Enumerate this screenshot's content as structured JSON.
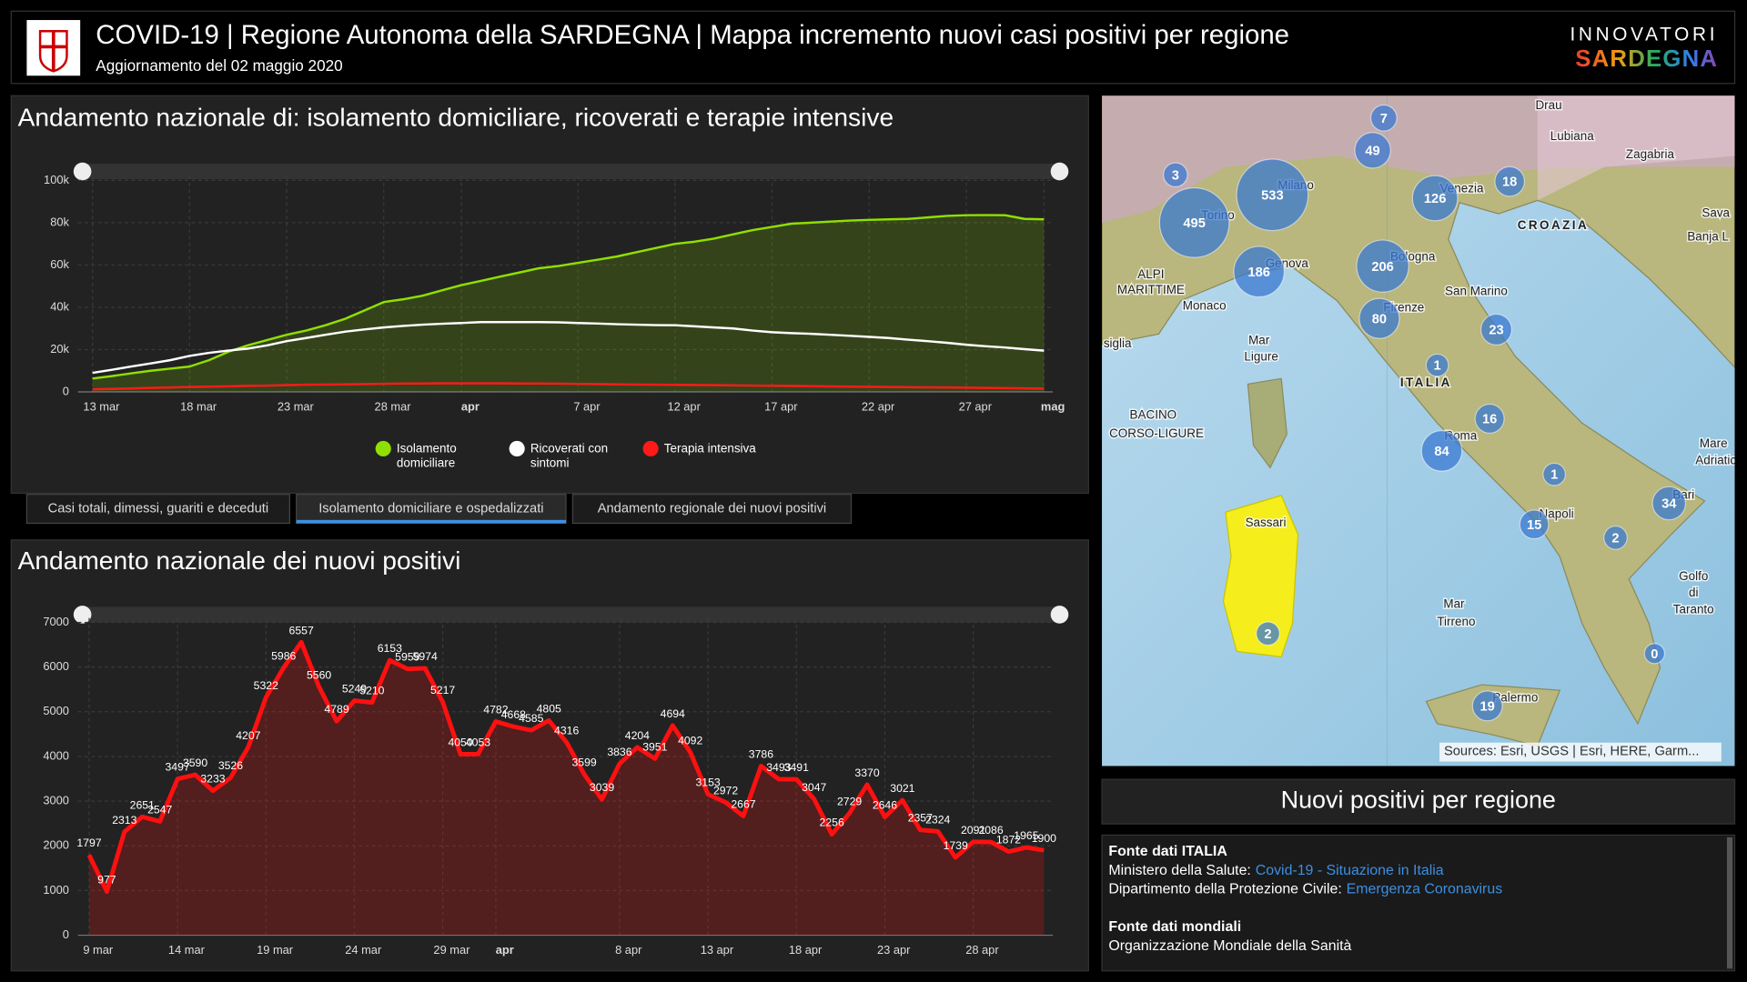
{
  "header": {
    "title": "COVID-19 | Regione Autonoma della SARDEGNA | Mappa incremento nuovi casi positivi per regione",
    "subtitle": "Aggiornamento del 02 maggio 2020",
    "brand": [
      "INNOVATORI",
      "SARDEGNA"
    ]
  },
  "chart_data": [
    {
      "type": "line",
      "title": "Andamento nazionale di: isolamento domiciliare, ricoverati e terapie intensive",
      "categories": [
        "13 mar",
        null,
        null,
        null,
        null,
        "18 mar",
        null,
        null,
        null,
        null,
        "23 mar",
        null,
        null,
        null,
        null,
        "28 mar",
        null,
        null,
        null,
        "apr",
        null,
        null,
        null,
        null,
        null,
        "7 apr",
        null,
        null,
        null,
        null,
        "12 apr",
        null,
        null,
        null,
        null,
        "17 apr",
        null,
        null,
        null,
        null,
        "22 apr",
        null,
        null,
        null,
        null,
        "27 apr",
        null,
        null,
        null,
        "mag"
      ],
      "series": [
        {
          "name": "Isolamento domiciliare",
          "color": "#8fe000",
          "filled": true,
          "values": [
            6300,
            7500,
            8800,
            10000,
            11000,
            12000,
            15000,
            19000,
            22000,
            24500,
            27000,
            29000,
            31500,
            34500,
            38500,
            42500,
            43800,
            45500,
            48000,
            50500,
            52500,
            54500,
            56500,
            58500,
            59500,
            61000,
            62500,
            64000,
            66000,
            68000,
            70000,
            71000,
            72500,
            74500,
            76500,
            78000,
            79500,
            80000,
            80500,
            81000,
            81300,
            81600,
            81800,
            82500,
            83200,
            83500,
            83600,
            83500,
            81800,
            81600
          ]
        },
        {
          "name": "Ricoverati con sintomi",
          "color": "#ffffff",
          "filled": false,
          "values": [
            9000,
            10500,
            12000,
            13500,
            15000,
            17000,
            18500,
            19500,
            20500,
            22000,
            24000,
            25500,
            27000,
            28500,
            29500,
            30500,
            31200,
            31800,
            32200,
            32600,
            33000,
            33000,
            33000,
            33000,
            32900,
            32600,
            32300,
            32000,
            31800,
            31600,
            31500,
            31000,
            30500,
            30000,
            29000,
            28200,
            27800,
            27500,
            27000,
            26500,
            26000,
            25500,
            24700,
            24000,
            23200,
            22300,
            21600,
            21000,
            20200,
            19500
          ]
        },
        {
          "name": "Terapia intensiva",
          "color": "#ff1a1a",
          "filled": false,
          "values": [
            1200,
            1400,
            1650,
            1900,
            2100,
            2300,
            2500,
            2650,
            2850,
            3000,
            3200,
            3400,
            3500,
            3600,
            3700,
            3850,
            3950,
            4000,
            4050,
            4050,
            4050,
            4050,
            4000,
            3950,
            3900,
            3800,
            3700,
            3600,
            3500,
            3400,
            3350,
            3250,
            3200,
            3100,
            3000,
            2900,
            2800,
            2700,
            2600,
            2500,
            2400,
            2300,
            2200,
            2150,
            2100,
            2000,
            1900,
            1800,
            1700,
            1600
          ]
        }
      ],
      "ylim": [
        0,
        100000
      ],
      "yticks": [
        0,
        {
          "value": 20000,
          "label": "20k"
        },
        {
          "value": 40000,
          "label": "40k"
        },
        {
          "value": 60000,
          "label": "60k"
        },
        {
          "value": 80000,
          "label": "80k"
        },
        {
          "value": 100000,
          "label": "100k"
        }
      ],
      "grid": true
    },
    {
      "type": "area",
      "title": "Andamento nazionale dei nuovi positivi",
      "color": "#ff1010",
      "categories": [
        "9 mar",
        null,
        null,
        null,
        null,
        "14 mar",
        null,
        null,
        null,
        null,
        "19 mar",
        null,
        null,
        null,
        null,
        "24 mar",
        null,
        null,
        null,
        null,
        "29 mar",
        null,
        null,
        "apr",
        null,
        null,
        null,
        null,
        null,
        null,
        "8 apr",
        null,
        null,
        null,
        null,
        "13 apr",
        null,
        null,
        null,
        null,
        "18 apr",
        null,
        null,
        null,
        null,
        "23 apr",
        null,
        null,
        null,
        null,
        "28 apr",
        null,
        null,
        null,
        null
      ],
      "values": [
        1797,
        977,
        2313,
        2651,
        2547,
        3497,
        3590,
        3233,
        3526,
        4207,
        5322,
        5986,
        6557,
        5560,
        4789,
        5249,
        5210,
        6153,
        5959,
        5974,
        5217,
        4050,
        4053,
        4782,
        4668,
        4585,
        4805,
        4316,
        3599,
        3039,
        3836,
        4204,
        3951,
        4694,
        4092,
        3153,
        2972,
        2667,
        3786,
        3493,
        3491,
        3047,
        2256,
        2729,
        3370,
        2646,
        3021,
        2357,
        2324,
        1739,
        2091,
        2086,
        1872,
        1965,
        1900
      ],
      "ylim": [
        0,
        7000
      ],
      "yticks": [
        0,
        1000,
        2000,
        3000,
        4000,
        5000,
        6000,
        7000
      ],
      "grid": true
    }
  ],
  "tabs": [
    "Casi totali, dimessi, guariti e deceduti",
    "Isolamento domiciliare e ospedalizzati",
    "Andamento regionale dei nuovi positivi"
  ],
  "active_tab": 1,
  "map": {
    "clusters": [
      7,
      49,
      3,
      533,
      126,
      18,
      495,
      186,
      206,
      80,
      23,
      1,
      16,
      84,
      1,
      34,
      15,
      2,
      2,
      0,
      19
    ],
    "places": [
      "Drau",
      "Lubiana",
      "Zagabria",
      "Sava",
      "Banja L",
      "CROAZIA",
      "Milano",
      "Torino",
      "Venezia",
      "Genova",
      "Bologna",
      "ALPI",
      "MARITTIME",
      "Monaco",
      "Firenze",
      "San Marino",
      "siglia",
      "Mar",
      "Ligure",
      "ITALIA",
      "BACINO",
      "CORSO-LIGURE",
      "Roma",
      "Mare",
      "Adriatic",
      "Bari",
      "Napoli",
      "Sassari",
      "Golfo",
      "di",
      "Taranto",
      "Mar",
      "Tirreno",
      "Palermo"
    ],
    "attribution": "Sources: Esri, USGS | Esri, HERE, Garm..."
  },
  "panel": {
    "title": "Nuovi positivi per regione",
    "sources": [
      {
        "heading": "Fonte dati ITALIA",
        "lines": [
          {
            "text": "Ministero della Salute:",
            "link": "Covid-19 - Situazione in Italia"
          },
          {
            "text": "Dipartimento della Protezione Civile:",
            "link": "Emergenza Coronavirus"
          }
        ]
      },
      {
        "heading": "Fonte dati mondiali",
        "lines": [
          {
            "text": "Organizzazione Mondiale della Sanità"
          }
        ]
      }
    ]
  }
}
